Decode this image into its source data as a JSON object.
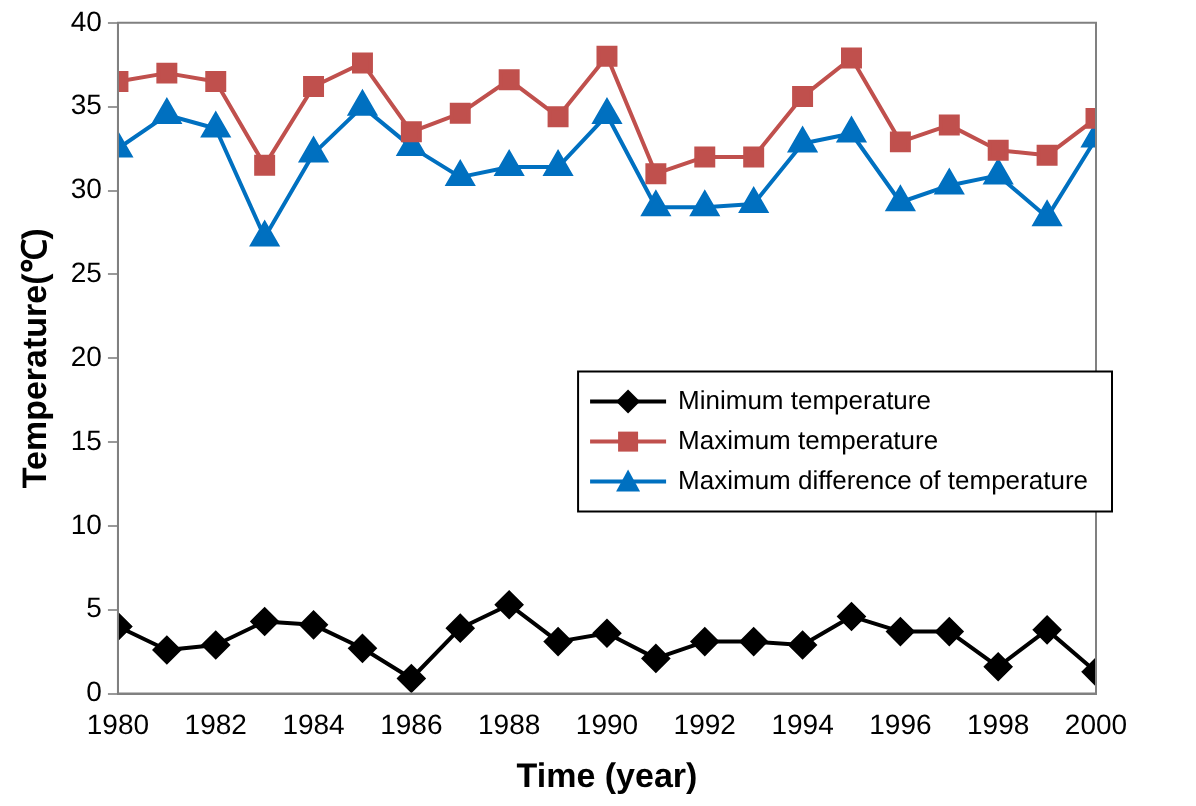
{
  "chart_data": {
    "type": "line",
    "xlabel": "Time (year)",
    "ylabel": "Temperature(℃)",
    "x": [
      1980,
      1981,
      1982,
      1983,
      1984,
      1985,
      1986,
      1987,
      1988,
      1989,
      1990,
      1991,
      1992,
      1993,
      1994,
      1995,
      1996,
      1997,
      1998,
      1999,
      2000
    ],
    "series": [
      {
        "name": "Minimum temperature",
        "color": "#000000",
        "marker": "diamond",
        "values": [
          4,
          2.6,
          2.9,
          4.3,
          4.1,
          2.7,
          0.9,
          3.9,
          5.3,
          3.1,
          3.6,
          2.1,
          3.1,
          3.1,
          2.9,
          4.6,
          3.7,
          3.7,
          1.6,
          3.8,
          1.3
        ]
      },
      {
        "name": "Maximum temperature",
        "color": "#c0504d",
        "marker": "square",
        "values": [
          36.5,
          37,
          36.5,
          31.5,
          36.2,
          37.6,
          33.5,
          34.6,
          36.6,
          34.4,
          38,
          31,
          32,
          32,
          35.6,
          37.9,
          32.9,
          33.9,
          32.4,
          32.1,
          34.3
        ]
      },
      {
        "name": "Maximum difference of temperature",
        "color": "#0070c0",
        "marker": "triangle",
        "values": [
          32.5,
          34.5,
          33.7,
          27.2,
          32.2,
          35,
          32.6,
          30.8,
          31.4,
          31.4,
          34.5,
          29,
          29,
          29.2,
          32.8,
          33.4,
          29.3,
          30.3,
          30.9,
          28.4,
          33.1
        ]
      }
    ],
    "xlim": [
      1980,
      2000
    ],
    "xticks": [
      1980,
      1982,
      1984,
      1986,
      1988,
      1990,
      1992,
      1994,
      1996,
      1998,
      2000
    ],
    "ylim": [
      0,
      40
    ],
    "yticks": [
      0,
      5,
      10,
      15,
      20,
      25,
      30,
      35,
      40
    ],
    "grid": false,
    "legend": "center right",
    "line_style": "solid"
  }
}
